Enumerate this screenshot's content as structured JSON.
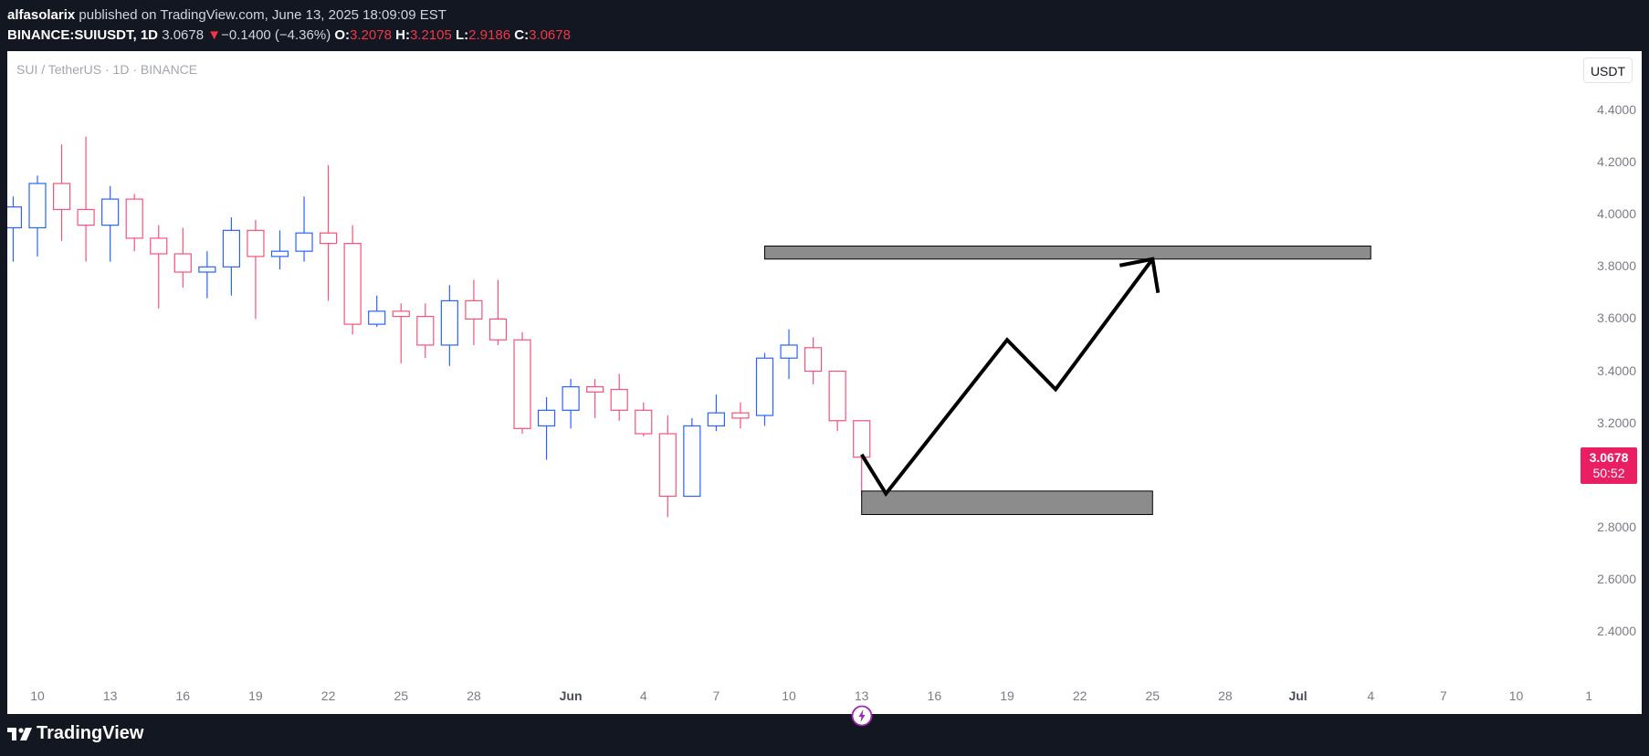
{
  "header": {
    "author": "alfasolarix",
    "published_text": "published on TradingView.com, June 13, 2025 18:09:09 EST",
    "symbol": "BINANCE:SUIUSDT, 1D",
    "last": "3.0678",
    "change_arrow": "▼",
    "change": "−0.1400 (−4.36%)",
    "o_label": "O:",
    "o": "3.2078",
    "h_label": "H:",
    "h": "3.2105",
    "l_label": "L:",
    "l": "2.9186",
    "c_label": "C:",
    "c": "3.0678"
  },
  "legend": "SUI / TetherUS · 1D · BINANCE",
  "unit_button": "USDT",
  "price_tag": {
    "price": "3.0678",
    "countdown": "50:52"
  },
  "footer": {
    "brand": "TradingView"
  },
  "colors": {
    "up": "#2962ff",
    "down": "#f7527a",
    "price_tag": "#e91e63",
    "zone": "#8c8c8c",
    "projection": "#000000"
  },
  "chart_data": {
    "type": "candlestick",
    "title": "SUI / TetherUS · 1D · BINANCE",
    "y_range": [
      2.2,
      4.6
    ],
    "y_ticks": [
      "4.4000",
      "4.2000",
      "4.0000",
      "3.8000",
      "3.6000",
      "3.4000",
      "3.2000",
      "2.8000",
      "2.6000",
      "2.4000"
    ],
    "x_ticks": [
      {
        "label": "10",
        "day": 0,
        "bold": false
      },
      {
        "label": "13",
        "day": 3,
        "bold": false
      },
      {
        "label": "16",
        "day": 6,
        "bold": false
      },
      {
        "label": "19",
        "day": 9,
        "bold": false
      },
      {
        "label": "22",
        "day": 12,
        "bold": false
      },
      {
        "label": "25",
        "day": 15,
        "bold": false
      },
      {
        "label": "28",
        "day": 18,
        "bold": false
      },
      {
        "label": "Jun",
        "day": 22,
        "bold": true
      },
      {
        "label": "4",
        "day": 25,
        "bold": false
      },
      {
        "label": "7",
        "day": 28,
        "bold": false
      },
      {
        "label": "10",
        "day": 31,
        "bold": false
      },
      {
        "label": "13",
        "day": 34,
        "bold": false
      },
      {
        "label": "16",
        "day": 37,
        "bold": false
      },
      {
        "label": "19",
        "day": 40,
        "bold": false
      },
      {
        "label": "22",
        "day": 43,
        "bold": false
      },
      {
        "label": "25",
        "day": 46,
        "bold": false
      },
      {
        "label": "28",
        "day": 49,
        "bold": false
      },
      {
        "label": "Jul",
        "day": 52,
        "bold": true
      },
      {
        "label": "4",
        "day": 55,
        "bold": false
      },
      {
        "label": "7",
        "day": 58,
        "bold": false
      },
      {
        "label": "10",
        "day": 61,
        "bold": false
      },
      {
        "label": "1",
        "day": 64,
        "bold": false
      }
    ],
    "candles": [
      {
        "day": -1,
        "o": 3.95,
        "h": 4.07,
        "l": 3.82,
        "c": 4.03
      },
      {
        "day": 0,
        "o": 3.95,
        "h": 4.15,
        "l": 3.84,
        "c": 4.12
      },
      {
        "day": 1,
        "o": 4.12,
        "h": 4.27,
        "l": 3.9,
        "c": 4.02
      },
      {
        "day": 2,
        "o": 4.02,
        "h": 4.3,
        "l": 3.82,
        "c": 3.96
      },
      {
        "day": 3,
        "o": 3.96,
        "h": 4.11,
        "l": 3.82,
        "c": 4.06
      },
      {
        "day": 4,
        "o": 4.06,
        "h": 4.08,
        "l": 3.86,
        "c": 3.91
      },
      {
        "day": 5,
        "o": 3.91,
        "h": 3.96,
        "l": 3.64,
        "c": 3.85
      },
      {
        "day": 6,
        "o": 3.85,
        "h": 3.95,
        "l": 3.72,
        "c": 3.78
      },
      {
        "day": 7,
        "o": 3.78,
        "h": 3.86,
        "l": 3.68,
        "c": 3.8
      },
      {
        "day": 8,
        "o": 3.8,
        "h": 3.99,
        "l": 3.69,
        "c": 3.94
      },
      {
        "day": 9,
        "o": 3.94,
        "h": 3.98,
        "l": 3.6,
        "c": 3.84
      },
      {
        "day": 10,
        "o": 3.84,
        "h": 3.94,
        "l": 3.79,
        "c": 3.86
      },
      {
        "day": 11,
        "o": 3.86,
        "h": 4.07,
        "l": 3.82,
        "c": 3.93
      },
      {
        "day": 12,
        "o": 3.93,
        "h": 4.19,
        "l": 3.67,
        "c": 3.89
      },
      {
        "day": 13,
        "o": 3.89,
        "h": 3.96,
        "l": 3.54,
        "c": 3.58
      },
      {
        "day": 14,
        "o": 3.58,
        "h": 3.69,
        "l": 3.57,
        "c": 3.63
      },
      {
        "day": 15,
        "o": 3.63,
        "h": 3.66,
        "l": 3.43,
        "c": 3.61
      },
      {
        "day": 16,
        "o": 3.61,
        "h": 3.66,
        "l": 3.45,
        "c": 3.5
      },
      {
        "day": 17,
        "o": 3.5,
        "h": 3.73,
        "l": 3.42,
        "c": 3.67
      },
      {
        "day": 18,
        "o": 3.67,
        "h": 3.75,
        "l": 3.5,
        "c": 3.6
      },
      {
        "day": 19,
        "o": 3.6,
        "h": 3.75,
        "l": 3.5,
        "c": 3.52
      },
      {
        "day": 20,
        "o": 3.52,
        "h": 3.55,
        "l": 3.16,
        "c": 3.18
      },
      {
        "day": 21,
        "o": 3.19,
        "h": 3.3,
        "l": 3.06,
        "c": 3.25
      },
      {
        "day": 22,
        "o": 3.25,
        "h": 3.37,
        "l": 3.18,
        "c": 3.34
      },
      {
        "day": 23,
        "o": 3.34,
        "h": 3.37,
        "l": 3.22,
        "c": 3.32
      },
      {
        "day": 24,
        "o": 3.33,
        "h": 3.39,
        "l": 3.21,
        "c": 3.25
      },
      {
        "day": 25,
        "o": 3.25,
        "h": 3.28,
        "l": 3.15,
        "c": 3.16
      },
      {
        "day": 26,
        "o": 3.16,
        "h": 3.23,
        "l": 2.84,
        "c": 2.92
      },
      {
        "day": 27,
        "o": 2.92,
        "h": 3.22,
        "l": 2.92,
        "c": 3.19
      },
      {
        "day": 28,
        "o": 3.19,
        "h": 3.31,
        "l": 3.17,
        "c": 3.24
      },
      {
        "day": 29,
        "o": 3.24,
        "h": 3.28,
        "l": 3.18,
        "c": 3.22
      },
      {
        "day": 30,
        "o": 3.23,
        "h": 3.47,
        "l": 3.19,
        "c": 3.45
      },
      {
        "day": 31,
        "o": 3.45,
        "h": 3.56,
        "l": 3.37,
        "c": 3.5
      },
      {
        "day": 32,
        "o": 3.49,
        "h": 3.53,
        "l": 3.35,
        "c": 3.4
      },
      {
        "day": 33,
        "o": 3.4,
        "h": 3.4,
        "l": 3.17,
        "c": 3.21
      },
      {
        "day": 34,
        "o": 3.21,
        "h": 3.21,
        "l": 2.92,
        "c": 3.07
      }
    ],
    "annotations": {
      "resistance_zone": {
        "day_start": 30,
        "day_end": 55,
        "price_low": 3.83,
        "price_high": 3.88
      },
      "support_zone": {
        "day_start": 34,
        "day_end": 46,
        "price_low": 2.85,
        "price_high": 2.94
      },
      "projection_path": [
        {
          "day": 34.0,
          "price": 3.08
        },
        {
          "day": 35.0,
          "price": 2.93
        },
        {
          "day": 40.0,
          "price": 3.52
        },
        {
          "day": 42.0,
          "price": 3.33
        },
        {
          "day": 46.0,
          "price": 3.83
        }
      ]
    }
  }
}
